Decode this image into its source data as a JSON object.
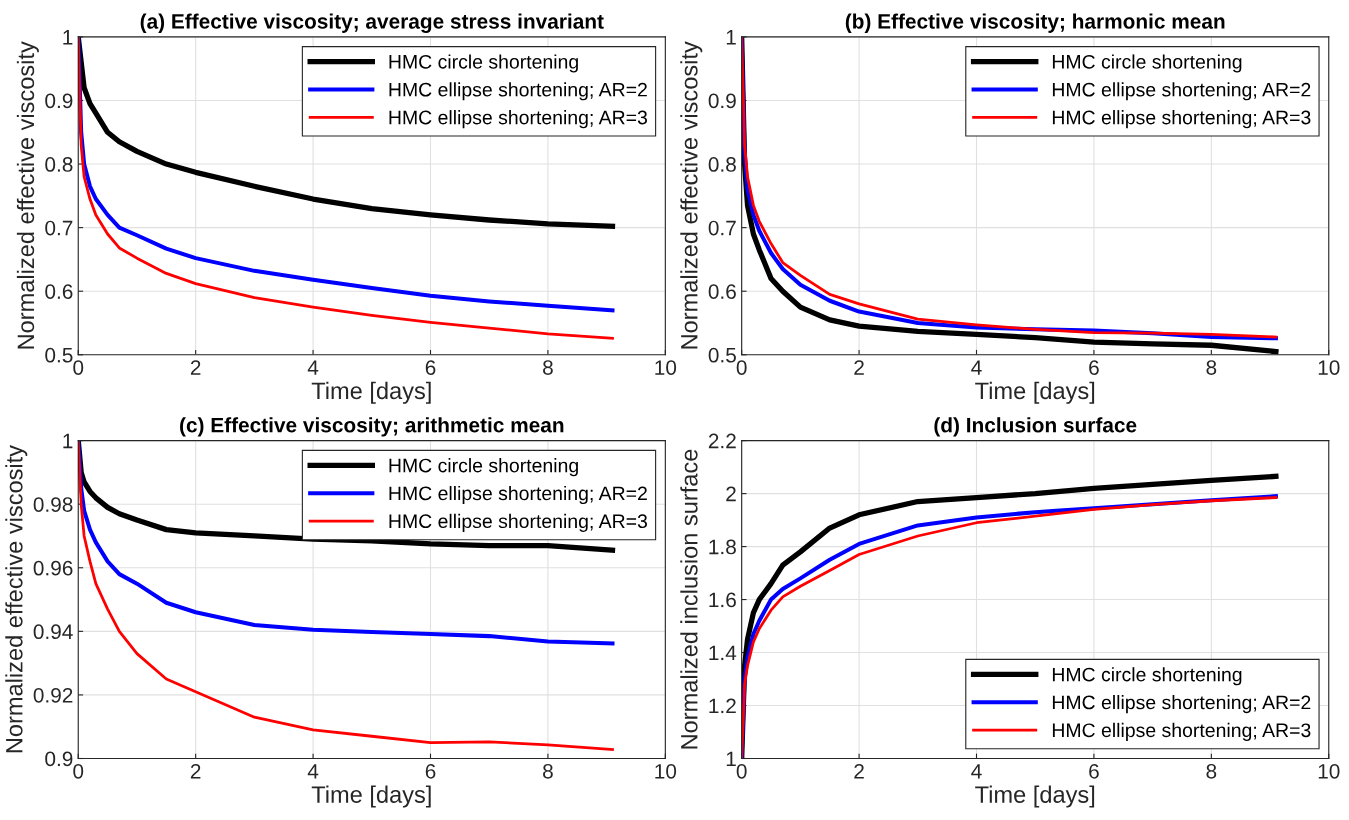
{
  "chart_data": [
    {
      "type": "line",
      "title": "(a) Effective viscosity; average stress invariant",
      "xlabel": "Time [days]",
      "ylabel": "Normalized effective viscosity",
      "x": [
        0,
        0.05,
        0.1,
        0.2,
        0.3,
        0.5,
        0.7,
        1,
        1.5,
        2,
        3,
        4,
        5,
        6,
        7,
        8,
        9.1
      ],
      "series": [
        {
          "name": "HMC circle shortening",
          "color": "#000000",
          "values": [
            1,
            0.96,
            0.92,
            0.895,
            0.88,
            0.85,
            0.835,
            0.82,
            0.8,
            0.787,
            0.765,
            0.745,
            0.73,
            0.72,
            0.712,
            0.706,
            0.702
          ]
        },
        {
          "name": "HMC ellipse shortening; AR=2",
          "color": "#0000ff",
          "values": [
            1,
            0.85,
            0.8,
            0.765,
            0.745,
            0.72,
            0.7,
            0.688,
            0.667,
            0.652,
            0.632,
            0.618,
            0.605,
            0.593,
            0.584,
            0.577,
            0.57
          ]
        },
        {
          "name": "HMC ellipse shortening; AR=3",
          "color": "#ff0000",
          "values": [
            1,
            0.83,
            0.78,
            0.745,
            0.72,
            0.69,
            0.668,
            0.652,
            0.628,
            0.612,
            0.59,
            0.575,
            0.562,
            0.551,
            0.542,
            0.533,
            0.526
          ]
        }
      ],
      "xlim": [
        0,
        10
      ],
      "xticks": [
        0,
        2,
        4,
        6,
        8,
        10
      ],
      "ylim": [
        0.5,
        1
      ],
      "yticks": [
        0.5,
        0.6,
        0.7,
        0.8,
        0.9,
        1
      ],
      "grid": true,
      "legend": "top right"
    },
    {
      "type": "line",
      "title": "(b) Effective viscosity; harmonic mean",
      "xlabel": "Time [days]",
      "ylabel": "Normalized effective viscosity",
      "x": [
        0,
        0.05,
        0.1,
        0.2,
        0.3,
        0.5,
        0.7,
        1,
        1.5,
        2,
        3,
        4,
        5,
        6,
        7,
        8,
        9.1
      ],
      "series": [
        {
          "name": "HMC circle shortening",
          "color": "#000000",
          "values": [
            1,
            0.8,
            0.735,
            0.69,
            0.665,
            0.62,
            0.6,
            0.575,
            0.555,
            0.545,
            0.537,
            0.532,
            0.527,
            0.52,
            0.517,
            0.515,
            0.505
          ]
        },
        {
          "name": "HMC ellipse shortening; AR=2",
          "color": "#0000ff",
          "values": [
            1,
            0.82,
            0.76,
            0.72,
            0.695,
            0.66,
            0.635,
            0.61,
            0.585,
            0.568,
            0.55,
            0.543,
            0.54,
            0.538,
            0.534,
            0.528,
            0.526
          ]
        },
        {
          "name": "HMC ellipse shortening; AR=3",
          "color": "#ff0000",
          "values": [
            1,
            0.83,
            0.78,
            0.735,
            0.71,
            0.675,
            0.645,
            0.625,
            0.595,
            0.58,
            0.556,
            0.547,
            0.54,
            0.535,
            0.534,
            0.532,
            0.528
          ]
        }
      ],
      "xlim": [
        0,
        10
      ],
      "xticks": [
        0,
        2,
        4,
        6,
        8,
        10
      ],
      "ylim": [
        0.5,
        1
      ],
      "yticks": [
        0.5,
        0.6,
        0.7,
        0.8,
        0.9,
        1
      ],
      "grid": true,
      "legend": "top right"
    },
    {
      "type": "line",
      "title": "(c) Effective viscosity; arithmetic mean",
      "xlabel": "Time [days]",
      "ylabel": "Normalized effective viscosity",
      "x": [
        0,
        0.05,
        0.1,
        0.2,
        0.3,
        0.5,
        0.7,
        1,
        1.5,
        2,
        3,
        4,
        5,
        6,
        7,
        8,
        9.1
      ],
      "series": [
        {
          "name": "HMC circle shortening",
          "color": "#000000",
          "values": [
            1,
            0.99,
            0.987,
            0.984,
            0.982,
            0.979,
            0.977,
            0.975,
            0.972,
            0.971,
            0.97,
            0.969,
            0.9685,
            0.9675,
            0.967,
            0.967,
            0.9655
          ]
        },
        {
          "name": "HMC ellipse shortening; AR=2",
          "color": "#0000ff",
          "values": [
            1,
            0.985,
            0.978,
            0.972,
            0.968,
            0.962,
            0.958,
            0.955,
            0.949,
            0.946,
            0.942,
            0.9405,
            0.9398,
            0.9392,
            0.9385,
            0.9368,
            0.9362
          ]
        },
        {
          "name": "HMC ellipse shortening; AR=3",
          "color": "#ff0000",
          "values": [
            1,
            0.98,
            0.97,
            0.962,
            0.955,
            0.947,
            0.94,
            0.933,
            0.925,
            0.921,
            0.913,
            0.909,
            0.907,
            0.905,
            0.9052,
            0.9043,
            0.9028
          ]
        }
      ],
      "xlim": [
        0,
        10
      ],
      "xticks": [
        0,
        2,
        4,
        6,
        8,
        10
      ],
      "ylim": [
        0.9,
        1
      ],
      "yticks": [
        0.9,
        0.92,
        0.94,
        0.96,
        0.98,
        1
      ],
      "grid": true,
      "legend": "top right"
    },
    {
      "type": "line",
      "title": "(d) Inclusion surface",
      "xlabel": "Time [days]",
      "ylabel": "Normalized inclusion surface",
      "x": [
        0,
        0.05,
        0.1,
        0.2,
        0.3,
        0.5,
        0.7,
        1,
        1.5,
        2,
        3,
        4,
        5,
        6,
        7,
        8,
        9.1
      ],
      "series": [
        {
          "name": "HMC circle shortening",
          "color": "#000000",
          "values": [
            1,
            1.35,
            1.45,
            1.55,
            1.6,
            1.66,
            1.73,
            1.78,
            1.87,
            1.92,
            1.97,
            1.985,
            2.0,
            2.02,
            2.035,
            2.05,
            2.065
          ]
        },
        {
          "name": "HMC ellipse shortening; AR=2",
          "color": "#0000ff",
          "values": [
            1,
            1.3,
            1.38,
            1.47,
            1.52,
            1.6,
            1.64,
            1.68,
            1.75,
            1.81,
            1.88,
            1.91,
            1.93,
            1.945,
            1.96,
            1.975,
            1.99
          ]
        },
        {
          "name": "HMC ellipse shortening; AR=3",
          "color": "#ff0000",
          "values": [
            1,
            1.28,
            1.35,
            1.44,
            1.49,
            1.56,
            1.61,
            1.65,
            1.71,
            1.77,
            1.84,
            1.89,
            1.915,
            1.94,
            1.958,
            1.973,
            1.985
          ]
        }
      ],
      "xlim": [
        0,
        10
      ],
      "xticks": [
        0,
        2,
        4,
        6,
        8,
        10
      ],
      "ylim": [
        1,
        2.2
      ],
      "yticks": [
        1,
        1.2,
        1.4,
        1.6,
        1.8,
        2,
        2.2
      ],
      "grid": true,
      "legend": "bottom right"
    }
  ]
}
